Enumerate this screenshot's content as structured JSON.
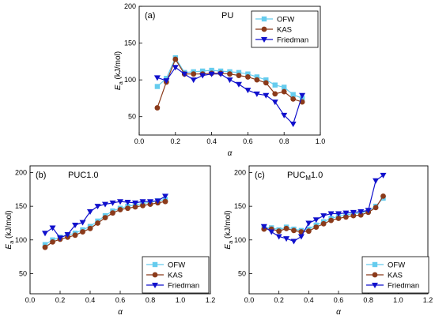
{
  "chart_data": [
    {
      "type": "line",
      "panel_label": "(a)",
      "title": "PU",
      "xlabel": "α",
      "ylabel": "E",
      "ylabel_sub": "a",
      "ylabel_unit": " (kJ/mol)",
      "xlim": [
        0.0,
        1.0
      ],
      "ylim": [
        25,
        200
      ],
      "xticks": [
        "0.0",
        "0.2",
        "0.4",
        "0.6",
        "0.8",
        "1.0"
      ],
      "yticks": [
        "50",
        "100",
        "150",
        "200"
      ],
      "legend_position": "top-right",
      "series": [
        {
          "name": "OFW",
          "color": "#66ccee",
          "marker": "square",
          "x": [
            0.1,
            0.15,
            0.2,
            0.25,
            0.3,
            0.35,
            0.4,
            0.45,
            0.5,
            0.55,
            0.6,
            0.65,
            0.7,
            0.75,
            0.8,
            0.85,
            0.9
          ],
          "y": [
            91,
            102,
            130,
            110,
            111,
            112,
            113,
            112,
            111,
            110,
            108,
            104,
            100,
            93,
            90,
            80,
            75
          ]
        },
        {
          "name": "KAS",
          "color": "#8b3a1a",
          "marker": "circle",
          "x": [
            0.1,
            0.15,
            0.2,
            0.25,
            0.3,
            0.35,
            0.4,
            0.45,
            0.5,
            0.55,
            0.6,
            0.65,
            0.7,
            0.75,
            0.8,
            0.85,
            0.9
          ],
          "y": [
            62,
            97,
            128,
            108,
            108,
            108,
            109,
            109,
            108,
            106,
            104,
            100,
            96,
            81,
            84,
            74,
            70
          ]
        },
        {
          "name": "Friedman",
          "color": "#1010cc",
          "marker": "triangle-down",
          "x": [
            0.1,
            0.15,
            0.2,
            0.25,
            0.3,
            0.35,
            0.4,
            0.45,
            0.5,
            0.55,
            0.6,
            0.65,
            0.7,
            0.75,
            0.8,
            0.85,
            0.9
          ],
          "y": [
            103,
            99,
            117,
            108,
            100,
            106,
            108,
            108,
            100,
            94,
            86,
            81,
            79,
            70,
            52,
            40,
            79
          ]
        }
      ]
    },
    {
      "type": "line",
      "panel_label": "(b)",
      "title": "PUC1.0",
      "title_sub": "",
      "title_suffix": "",
      "xlabel": "α",
      "ylabel": "E",
      "ylabel_sub": "a",
      "ylabel_unit": " (kJ/mol)",
      "xlim": [
        0.0,
        1.2
      ],
      "ylim": [
        20,
        210
      ],
      "xticks": [
        "0.0",
        "0.2",
        "0.4",
        "0.6",
        "0.8",
        "1.0",
        "1.2"
      ],
      "yticks": [
        "50",
        "100",
        "150",
        "200"
      ],
      "legend_position": "bottom-right",
      "series": [
        {
          "name": "OFW",
          "color": "#66ccee",
          "marker": "square",
          "x": [
            0.1,
            0.15,
            0.2,
            0.25,
            0.3,
            0.35,
            0.4,
            0.45,
            0.5,
            0.55,
            0.6,
            0.65,
            0.7,
            0.75,
            0.8,
            0.85,
            0.9
          ],
          "y": [
            93,
            100,
            104,
            107,
            110,
            115,
            120,
            128,
            136,
            143,
            147,
            150,
            152,
            154,
            156,
            158,
            160
          ]
        },
        {
          "name": "KAS",
          "color": "#8b3a1a",
          "marker": "circle",
          "x": [
            0.1,
            0.15,
            0.2,
            0.25,
            0.3,
            0.35,
            0.4,
            0.45,
            0.5,
            0.55,
            0.6,
            0.65,
            0.7,
            0.75,
            0.8,
            0.85,
            0.9
          ],
          "y": [
            89,
            97,
            101,
            104,
            107,
            112,
            117,
            125,
            133,
            140,
            145,
            147,
            149,
            151,
            153,
            155,
            157
          ]
        },
        {
          "name": "Friedman",
          "color": "#1010cc",
          "marker": "triangle-down",
          "x": [
            0.1,
            0.15,
            0.2,
            0.25,
            0.3,
            0.35,
            0.4,
            0.45,
            0.5,
            0.55,
            0.6,
            0.65,
            0.7,
            0.75,
            0.8,
            0.85,
            0.9
          ],
          "y": [
            110,
            118,
            103,
            108,
            122,
            126,
            142,
            150,
            153,
            155,
            157,
            156,
            155,
            157,
            157,
            158,
            165
          ]
        }
      ]
    },
    {
      "type": "line",
      "panel_label": "(c)",
      "title": "PUC",
      "title_sub": "M",
      "title_suffix": "1.0",
      "xlabel": "α",
      "ylabel": "E",
      "ylabel_sub": "a",
      "ylabel_unit": " (kJ/mol)",
      "xlim": [
        0.0,
        1.2
      ],
      "ylim": [
        20,
        210
      ],
      "xticks": [
        "0.0",
        "0.2",
        "0.4",
        "0.6",
        "0.8",
        "1.0",
        "1.2"
      ],
      "yticks": [
        "50",
        "100",
        "150",
        "200"
      ],
      "legend_position": "bottom-right",
      "series": [
        {
          "name": "OFW",
          "color": "#66ccee",
          "marker": "square",
          "x": [
            0.1,
            0.15,
            0.2,
            0.25,
            0.3,
            0.35,
            0.4,
            0.45,
            0.5,
            0.55,
            0.6,
            0.65,
            0.7,
            0.75,
            0.8,
            0.85,
            0.9
          ],
          "y": [
            118,
            118,
            115,
            119,
            116,
            114,
            116,
            122,
            127,
            132,
            135,
            137,
            139,
            140,
            143,
            150,
            162
          ]
        },
        {
          "name": "KAS",
          "color": "#8b3a1a",
          "marker": "circle",
          "x": [
            0.1,
            0.15,
            0.2,
            0.25,
            0.3,
            0.35,
            0.4,
            0.45,
            0.5,
            0.55,
            0.6,
            0.65,
            0.7,
            0.75,
            0.8,
            0.85,
            0.9
          ],
          "y": [
            116,
            116,
            113,
            117,
            114,
            112,
            113,
            119,
            124,
            129,
            132,
            134,
            136,
            137,
            141,
            148,
            165
          ]
        },
        {
          "name": "Friedman",
          "color": "#1010cc",
          "marker": "triangle-down",
          "x": [
            0.1,
            0.15,
            0.2,
            0.25,
            0.3,
            0.35,
            0.4,
            0.45,
            0.5,
            0.55,
            0.6,
            0.65,
            0.7,
            0.75,
            0.8,
            0.85,
            0.9
          ],
          "y": [
            120,
            112,
            105,
            102,
            98,
            105,
            125,
            130,
            136,
            139,
            139,
            140,
            141,
            142,
            144,
            188,
            196
          ]
        }
      ]
    }
  ]
}
